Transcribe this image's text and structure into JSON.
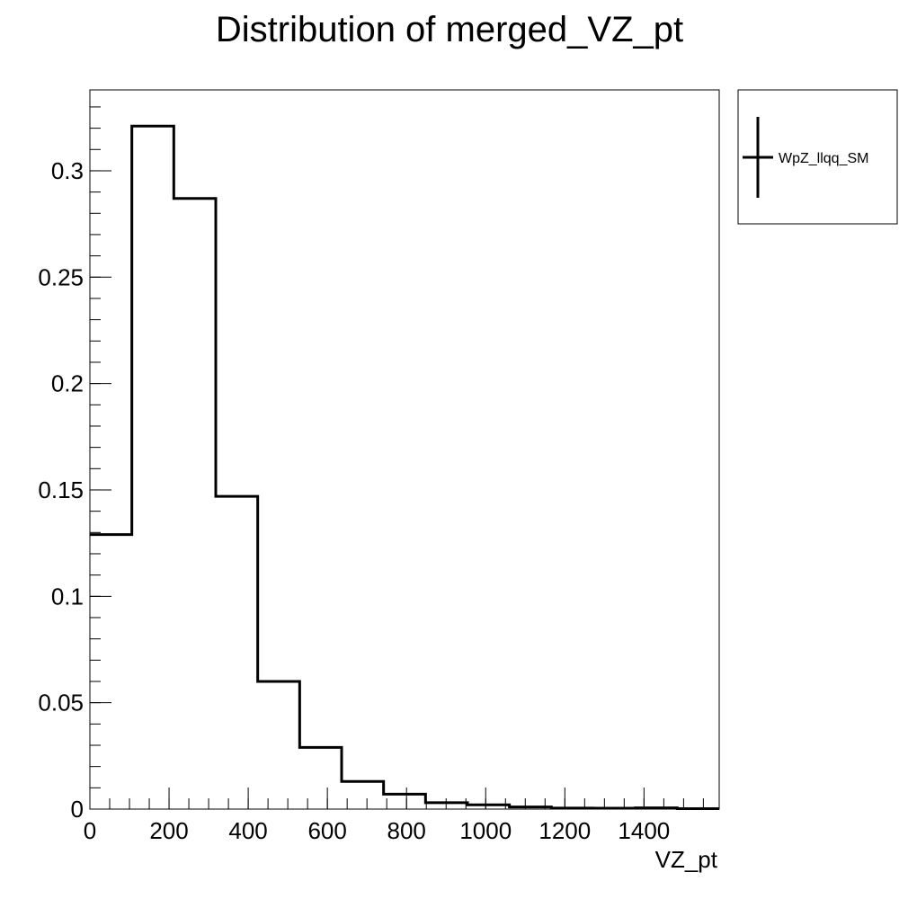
{
  "chart_data": {
    "type": "histogram",
    "title": "Distribution of merged_VZ_pt",
    "xlabel": "VZ_pt",
    "ylabel": "",
    "xlim": [
      0,
      1590
    ],
    "ylim": [
      0,
      0.338
    ],
    "bin_edges": [
      0,
      106,
      212,
      318,
      424,
      530,
      636,
      742,
      848,
      954,
      1060,
      1166,
      1272,
      1378,
      1484,
      1590
    ],
    "series": [
      {
        "name": "WpZ_llqq_SM",
        "values": [
          0.129,
          0.321,
          0.287,
          0.147,
          0.06,
          0.029,
          0.013,
          0.007,
          0.003,
          0.002,
          0.001,
          0.0005,
          0.0004,
          0.0006,
          0.0002
        ]
      }
    ],
    "x_ticks": [
      {
        "value": 0,
        "label": "0"
      },
      {
        "value": 200,
        "label": "200"
      },
      {
        "value": 400,
        "label": "400"
      },
      {
        "value": 600,
        "label": "600"
      },
      {
        "value": 800,
        "label": "800"
      },
      {
        "value": 1000,
        "label": "1000"
      },
      {
        "value": 1200,
        "label": "1200"
      },
      {
        "value": 1400,
        "label": "1400"
      }
    ],
    "y_ticks": [
      {
        "value": 0,
        "label": "0"
      },
      {
        "value": 0.05,
        "label": "0.05"
      },
      {
        "value": 0.1,
        "label": "0.1"
      },
      {
        "value": 0.15,
        "label": "0.15"
      },
      {
        "value": 0.2,
        "label": "0.2"
      },
      {
        "value": 0.25,
        "label": "0.25"
      },
      {
        "value": 0.3,
        "label": "0.3"
      }
    ],
    "x_minor_step": 50,
    "y_minor_step": 0.01,
    "grid": false,
    "legend_position": "outside-top-right",
    "line_color": "#000000"
  }
}
